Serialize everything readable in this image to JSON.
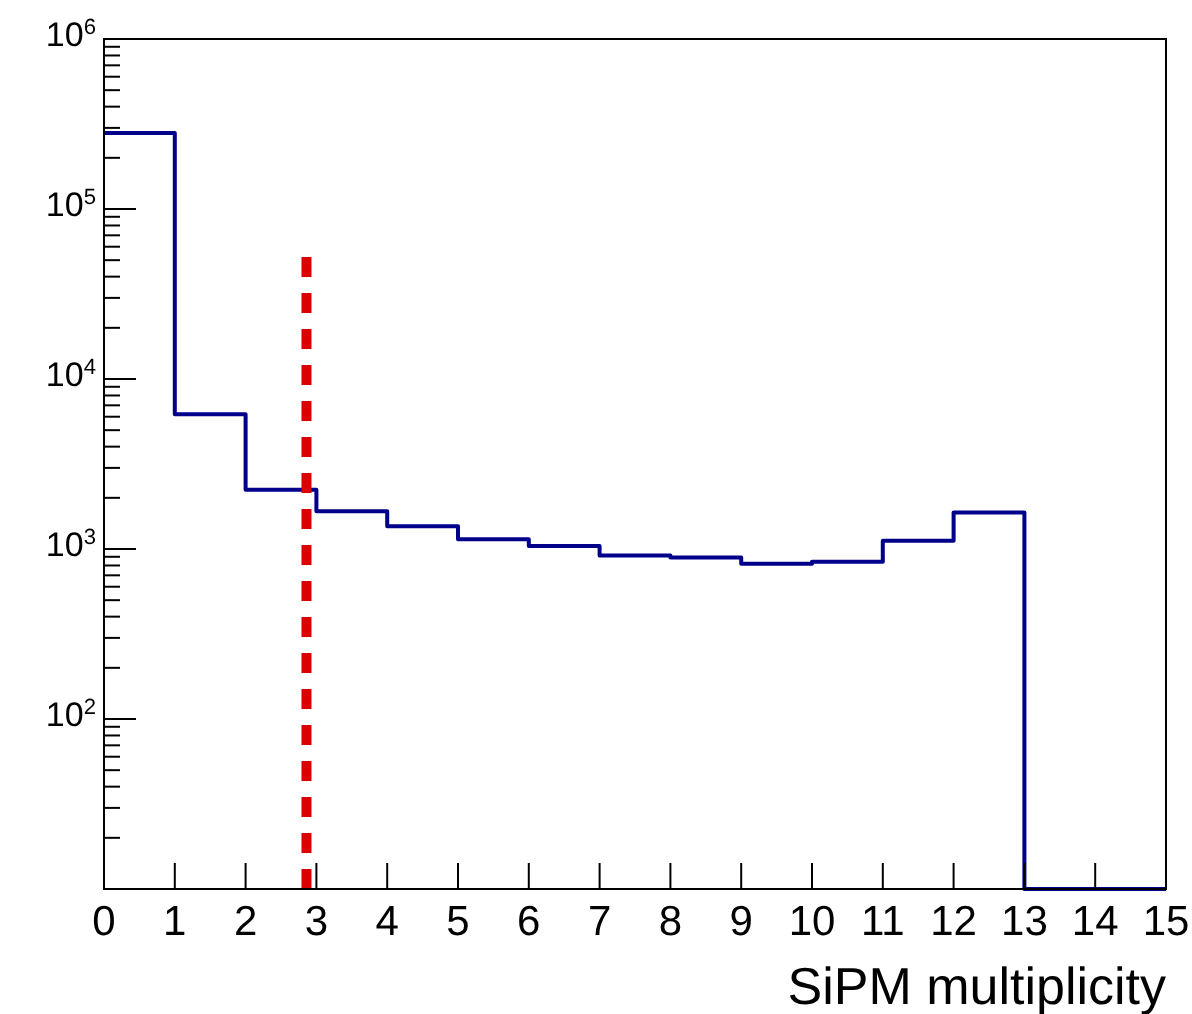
{
  "chart_data": {
    "type": "histogram",
    "xlabel": "SiPM multiplicity",
    "bins": [
      0,
      1,
      2,
      3,
      4,
      5,
      6,
      7,
      8,
      9,
      10,
      11,
      12,
      13,
      14,
      15
    ],
    "values": [
      280000,
      6200,
      2230,
      1670,
      1360,
      1140,
      1040,
      915,
      890,
      820,
      840,
      1120,
      1640,
      null,
      null
    ],
    "color": "#00008b",
    "log": "y",
    "grid": false,
    "xlim": [
      0,
      15
    ],
    "xticks": [
      0,
      1,
      2,
      3,
      4,
      5,
      6,
      7,
      8,
      9,
      10,
      11,
      12,
      13,
      14,
      15
    ],
    "ylim": [
      10,
      1000000
    ],
    "yticks": [
      {
        "value": 10,
        "label": null
      },
      {
        "value": 20,
        "label": null
      },
      {
        "value": 30,
        "label": null
      },
      {
        "value": 40,
        "label": null
      },
      {
        "value": 50,
        "label": null
      },
      {
        "value": 60,
        "label": null
      },
      {
        "value": 70,
        "label": null
      },
      {
        "value": 80,
        "label": null
      },
      {
        "value": 90,
        "label": null
      },
      {
        "value": 100,
        "label": "10$^{2}$"
      },
      {
        "value": 200,
        "label": null
      },
      {
        "value": 300,
        "label": null
      },
      {
        "value": 400,
        "label": null
      },
      {
        "value": 500,
        "label": null
      },
      {
        "value": 600,
        "label": null
      },
      {
        "value": 700,
        "label": null
      },
      {
        "value": 800,
        "label": null
      },
      {
        "value": 900,
        "label": null
      },
      {
        "value": 1000,
        "label": "10$^{3}$"
      },
      {
        "value": 2000,
        "label": null
      },
      {
        "value": 3000,
        "label": null
      },
      {
        "value": 4000,
        "label": null
      },
      {
        "value": 5000,
        "label": null
      },
      {
        "value": 6000,
        "label": null
      },
      {
        "value": 7000,
        "label": null
      },
      {
        "value": 8000,
        "label": null
      },
      {
        "value": 9000,
        "label": null
      },
      {
        "value": 10000,
        "label": "10$^{4}$"
      },
      {
        "value": 20000,
        "label": null
      },
      {
        "value": 30000,
        "label": null
      },
      {
        "value": 40000,
        "label": null
      },
      {
        "value": 50000,
        "label": null
      },
      {
        "value": 60000,
        "label": null
      },
      {
        "value": 70000,
        "label": null
      },
      {
        "value": 80000,
        "label": null
      },
      {
        "value": 90000,
        "label": null
      },
      {
        "value": 100000,
        "label": "10$^{5}$"
      },
      {
        "value": 200000,
        "label": null
      },
      {
        "value": 300000,
        "label": null
      },
      {
        "value": 400000,
        "label": null
      },
      {
        "value": 500000,
        "label": null
      },
      {
        "value": 600000,
        "label": null
      },
      {
        "value": 700000,
        "label": null
      },
      {
        "value": 800000,
        "label": null
      },
      {
        "value": 900000,
        "label": null
      },
      {
        "value": 1000000,
        "label": "10$^{6}$"
      }
    ],
    "ref_lines": [
      {
        "axis": "x",
        "value": 2.86,
        "color": "#dd0000",
        "line_style": "dashed"
      }
    ]
  }
}
